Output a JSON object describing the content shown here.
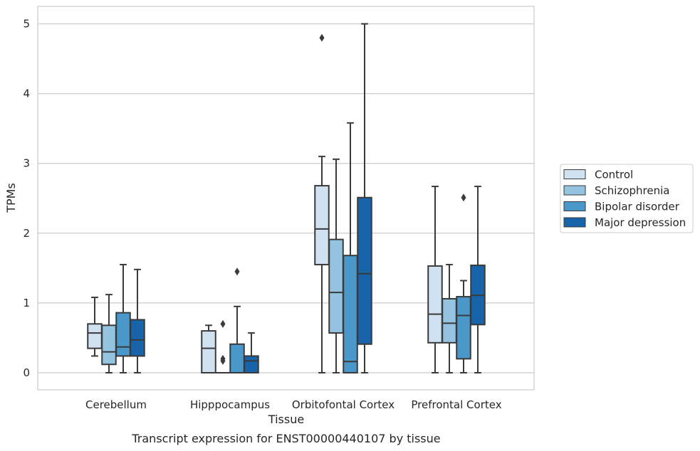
{
  "chart_data": {
    "type": "box",
    "title": "",
    "caption": "Transcript expression for ENST00000440107 by tissue",
    "xlabel": "Tissue",
    "ylabel": "TPMs",
    "ylim": [
      -0.25,
      5.25
    ],
    "yticks": [
      0,
      1,
      2,
      3,
      4,
      5
    ],
    "grid": "horizontal",
    "legend_position": "right",
    "categories": [
      "Cerebellum",
      "Hipppocampus",
      "Orbitofontal Cortex",
      "Prefrontal Cortex"
    ],
    "series": [
      {
        "name": "Control",
        "color": "#d0e1f2",
        "boxes": [
          {
            "min": 0.24,
            "q1": 0.35,
            "median": 0.57,
            "q3": 0.7,
            "max": 1.08,
            "outliers": []
          },
          {
            "min": 0.0,
            "q1": 0.0,
            "median": 0.35,
            "q3": 0.6,
            "max": 0.68,
            "outliers": []
          },
          {
            "min": 0.0,
            "q1": 1.55,
            "median": 2.06,
            "q3": 2.68,
            "max": 3.1,
            "outliers": [
              4.8
            ]
          },
          {
            "min": 0.0,
            "q1": 0.43,
            "median": 0.84,
            "q3": 1.53,
            "max": 2.67,
            "outliers": []
          }
        ]
      },
      {
        "name": "Schizophrenia",
        "color": "#94c4df",
        "boxes": [
          {
            "min": 0.0,
            "q1": 0.12,
            "median": 0.3,
            "q3": 0.68,
            "max": 1.12,
            "outliers": []
          },
          {
            "min": 0.0,
            "q1": 0.0,
            "median": 0.0,
            "q3": 0.0,
            "max": 0.0,
            "outliers": [
              0.7,
              0.2,
              0.17
            ]
          },
          {
            "min": 0.0,
            "q1": 0.57,
            "median": 1.15,
            "q3": 1.91,
            "max": 3.06,
            "outliers": []
          },
          {
            "min": 0.0,
            "q1": 0.43,
            "median": 0.71,
            "q3": 1.06,
            "max": 1.55,
            "outliers": []
          }
        ]
      },
      {
        "name": "Bipolar disorder",
        "color": "#4a98c9",
        "boxes": [
          {
            "min": 0.0,
            "q1": 0.24,
            "median": 0.37,
            "q3": 0.86,
            "max": 1.55,
            "outliers": []
          },
          {
            "min": 0.0,
            "q1": 0.0,
            "median": 0.0,
            "q3": 0.41,
            "max": 0.95,
            "outliers": [
              1.45
            ]
          },
          {
            "min": 0.0,
            "q1": 0.0,
            "median": 0.16,
            "q3": 1.68,
            "max": 3.58,
            "outliers": []
          },
          {
            "min": 0.0,
            "q1": 0.2,
            "median": 0.82,
            "q3": 1.09,
            "max": 1.32,
            "outliers": [
              2.51
            ]
          }
        ]
      },
      {
        "name": "Major depression",
        "color": "#1764ab",
        "boxes": [
          {
            "min": 0.0,
            "q1": 0.24,
            "median": 0.47,
            "q3": 0.76,
            "max": 1.48,
            "outliers": []
          },
          {
            "min": 0.0,
            "q1": 0.0,
            "median": 0.17,
            "q3": 0.24,
            "max": 0.57,
            "outliers": []
          },
          {
            "min": 0.0,
            "q1": 0.41,
            "median": 1.42,
            "q3": 2.51,
            "max": 5.0,
            "outliers": []
          },
          {
            "min": 0.0,
            "q1": 0.69,
            "median": 1.11,
            "q3": 1.54,
            "max": 2.67,
            "outliers": []
          }
        ]
      }
    ]
  }
}
